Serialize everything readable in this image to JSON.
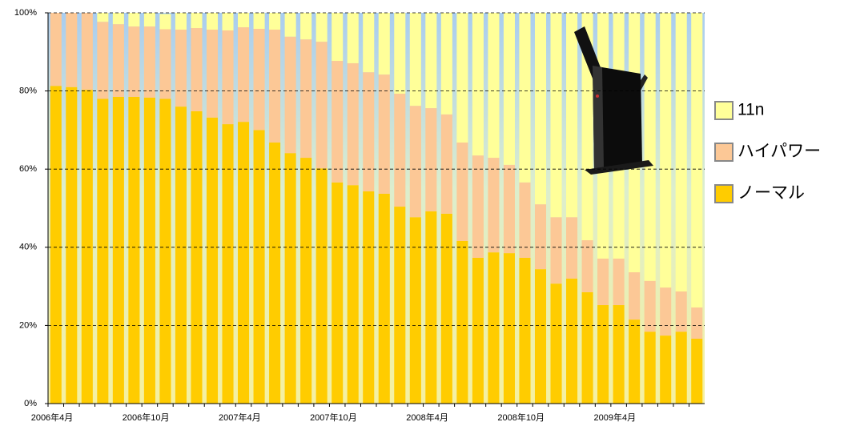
{
  "chart_data": {
    "type": "stacked_bar",
    "categories": [
      "2006年4月",
      null,
      null,
      null,
      null,
      null,
      "2006年10月",
      null,
      null,
      null,
      null,
      null,
      "2007年4月",
      null,
      null,
      null,
      null,
      null,
      "2007年10月",
      null,
      null,
      null,
      null,
      null,
      "2008年4月",
      null,
      null,
      null,
      null,
      null,
      "2008年10月",
      null,
      null,
      null,
      null,
      null,
      "2009年4月",
      null,
      null,
      null,
      null,
      null
    ],
    "series": [
      {
        "name": "11n",
        "color": "#ffff99",
        "values": [
          0,
          0,
          0,
          2.3,
          2.9,
          3.5,
          3.5,
          3.9,
          4.3,
          3.9,
          4.3,
          4.5,
          3.7,
          4.1,
          4.3,
          6.1,
          6.8,
          7.4,
          12.3,
          12.9,
          15.2,
          15.8,
          20.7,
          23.8,
          24.4,
          26,
          33.2,
          36.5,
          37.1,
          38.9,
          43.4,
          49,
          52.3,
          52.3,
          58.2,
          62.9,
          62.9,
          66.4,
          68.6,
          70.3,
          71.3,
          75.4
        ]
      },
      {
        "name": "ハイパワー",
        "color": "#fcc896",
        "values": [
          18.7,
          19,
          19.7,
          19.7,
          18.6,
          18,
          18.2,
          17.8,
          19.7,
          21.3,
          22.5,
          24,
          24.2,
          25.9,
          28.9,
          29.8,
          30.3,
          32.4,
          31.1,
          31.2,
          30.5,
          30.5,
          28.9,
          28.5,
          26.4,
          25.4,
          25.2,
          26.2,
          24.2,
          22.6,
          19.3,
          16.6,
          17,
          15.7,
          13.3,
          11.9,
          11.9,
          12.1,
          13,
          12.3,
          10.3,
          8
        ]
      },
      {
        "name": "ノーマル",
        "color": "#ffcc00",
        "values": [
          81.3,
          81,
          80.3,
          78,
          78.5,
          78.5,
          78.3,
          78,
          76,
          74.8,
          73.2,
          71.5,
          72.1,
          70,
          66.8,
          64.1,
          62.9,
          60.2,
          56.6,
          55.9,
          54.3,
          53.7,
          50.4,
          47.7,
          49.2,
          48.6,
          41.6,
          37.3,
          38.7,
          38.5,
          37.3,
          34.4,
          30.7,
          32,
          28.5,
          25.2,
          25.2,
          21.5,
          18.4,
          17.4,
          18.4,
          16.6
        ]
      }
    ],
    "ylim": [
      0,
      100
    ],
    "yticks": [
      {
        "value": 0,
        "label": "0%"
      },
      {
        "value": 20,
        "label": "20%"
      },
      {
        "value": 40,
        "label": "40%"
      },
      {
        "value": 60,
        "label": "60%"
      },
      {
        "value": 80,
        "label": "80%"
      },
      {
        "value": 100,
        "label": "100%"
      }
    ],
    "grid": true
  }
}
